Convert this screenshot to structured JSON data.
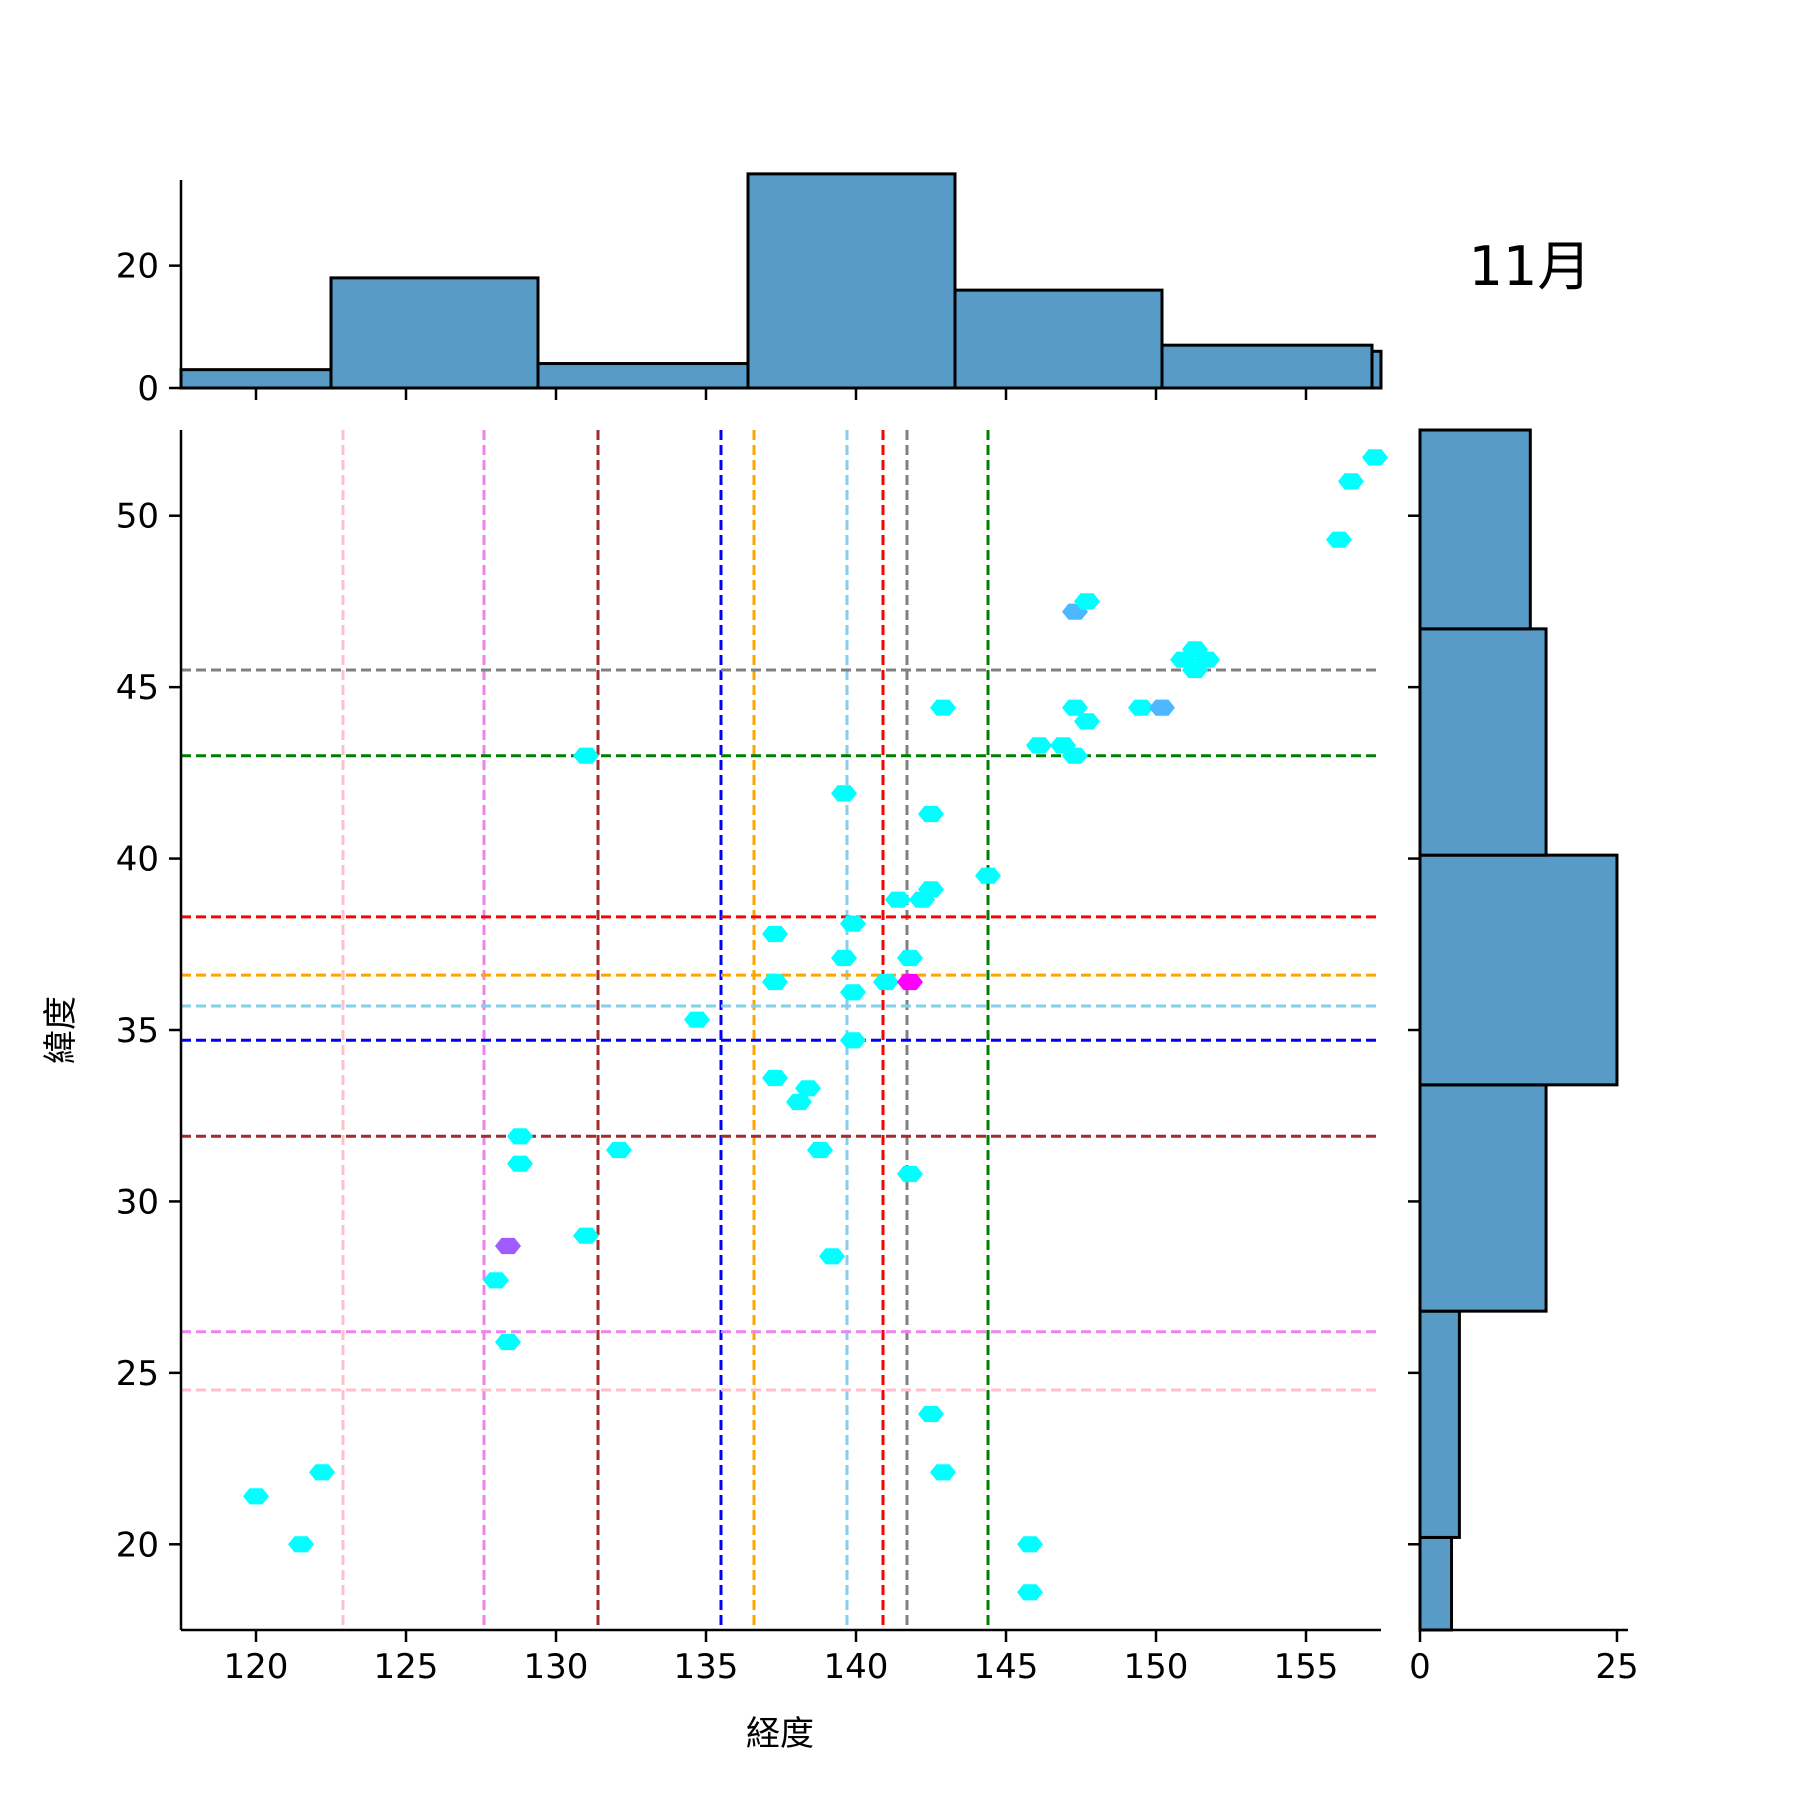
{
  "chart_data": {
    "type": "hexbin",
    "title": "11月",
    "xlabel": "経度",
    "ylabel": "緯度",
    "xlim": [
      117.5,
      157.5
    ],
    "ylim": [
      17.5,
      52.5
    ],
    "xticks": [
      120,
      125,
      130,
      135,
      140,
      145,
      150,
      155
    ],
    "yticks": [
      20,
      25,
      30,
      35,
      40,
      45,
      50
    ],
    "grid": false,
    "hex_colors": {
      "low": "#00ffff",
      "mid": "#4db8ff",
      "high": "#a05cff",
      "peak": "#ff00ff"
    },
    "points": [
      {
        "x": 120.0,
        "y": 21.4,
        "level": "low"
      },
      {
        "x": 121.5,
        "y": 20.0,
        "level": "low"
      },
      {
        "x": 122.2,
        "y": 22.1,
        "level": "low"
      },
      {
        "x": 128.0,
        "y": 27.7,
        "level": "low"
      },
      {
        "x": 128.4,
        "y": 28.7,
        "level": "high"
      },
      {
        "x": 128.4,
        "y": 25.9,
        "level": "low"
      },
      {
        "x": 128.8,
        "y": 31.9,
        "level": "low"
      },
      {
        "x": 128.8,
        "y": 31.1,
        "level": "low"
      },
      {
        "x": 131.0,
        "y": 43.0,
        "level": "low"
      },
      {
        "x": 131.0,
        "y": 29.0,
        "level": "low"
      },
      {
        "x": 132.1,
        "y": 31.5,
        "level": "low"
      },
      {
        "x": 134.7,
        "y": 35.3,
        "level": "low"
      },
      {
        "x": 137.3,
        "y": 37.8,
        "level": "low"
      },
      {
        "x": 137.3,
        "y": 36.4,
        "level": "low"
      },
      {
        "x": 137.3,
        "y": 33.6,
        "level": "low"
      },
      {
        "x": 138.1,
        "y": 32.9,
        "level": "low"
      },
      {
        "x": 138.4,
        "y": 33.3,
        "level": "low"
      },
      {
        "x": 138.8,
        "y": 31.5,
        "level": "low"
      },
      {
        "x": 139.2,
        "y": 28.4,
        "level": "low"
      },
      {
        "x": 139.6,
        "y": 41.9,
        "level": "low"
      },
      {
        "x": 139.6,
        "y": 37.1,
        "level": "low"
      },
      {
        "x": 139.9,
        "y": 38.1,
        "level": "low"
      },
      {
        "x": 139.9,
        "y": 36.1,
        "level": "low"
      },
      {
        "x": 139.9,
        "y": 34.7,
        "level": "low"
      },
      {
        "x": 141.0,
        "y": 36.4,
        "level": "low"
      },
      {
        "x": 141.4,
        "y": 38.8,
        "level": "low"
      },
      {
        "x": 141.8,
        "y": 37.1,
        "level": "low"
      },
      {
        "x": 141.8,
        "y": 36.4,
        "level": "peak"
      },
      {
        "x": 141.8,
        "y": 30.8,
        "level": "low"
      },
      {
        "x": 142.2,
        "y": 38.8,
        "level": "low"
      },
      {
        "x": 142.5,
        "y": 41.3,
        "level": "low"
      },
      {
        "x": 142.5,
        "y": 39.1,
        "level": "low"
      },
      {
        "x": 142.5,
        "y": 23.8,
        "level": "low"
      },
      {
        "x": 142.9,
        "y": 44.4,
        "level": "low"
      },
      {
        "x": 142.9,
        "y": 22.1,
        "level": "low"
      },
      {
        "x": 144.4,
        "y": 39.5,
        "level": "low"
      },
      {
        "x": 145.8,
        "y": 20.0,
        "level": "low"
      },
      {
        "x": 145.8,
        "y": 18.6,
        "level": "low"
      },
      {
        "x": 146.1,
        "y": 43.3,
        "level": "low"
      },
      {
        "x": 146.9,
        "y": 43.3,
        "level": "low"
      },
      {
        "x": 147.3,
        "y": 47.2,
        "level": "mid"
      },
      {
        "x": 147.3,
        "y": 44.4,
        "level": "low"
      },
      {
        "x": 147.3,
        "y": 43.0,
        "level": "low"
      },
      {
        "x": 147.7,
        "y": 47.5,
        "level": "low"
      },
      {
        "x": 147.7,
        "y": 44.0,
        "level": "low"
      },
      {
        "x": 149.5,
        "y": 44.4,
        "level": "low"
      },
      {
        "x": 150.2,
        "y": 44.4,
        "level": "mid"
      },
      {
        "x": 150.9,
        "y": 45.8,
        "level": "low"
      },
      {
        "x": 151.3,
        "y": 46.1,
        "level": "low"
      },
      {
        "x": 151.3,
        "y": 45.5,
        "level": "low"
      },
      {
        "x": 151.7,
        "y": 45.8,
        "level": "low"
      },
      {
        "x": 156.1,
        "y": 49.3,
        "level": "low"
      },
      {
        "x": 156.5,
        "y": 51.0,
        "level": "low"
      },
      {
        "x": 157.3,
        "y": 51.7,
        "level": "low"
      }
    ],
    "vlines": [
      {
        "x": 122.9,
        "color": "#ffc0cb"
      },
      {
        "x": 127.6,
        "color": "#ee82ee"
      },
      {
        "x": 131.4,
        "color": "#a52a2a"
      },
      {
        "x": 135.5,
        "color": "#0000ff"
      },
      {
        "x": 136.6,
        "color": "#ffa500"
      },
      {
        "x": 139.7,
        "color": "#87ceeb"
      },
      {
        "x": 140.9,
        "color": "#ff0000"
      },
      {
        "x": 141.7,
        "color": "#808080"
      },
      {
        "x": 144.4,
        "color": "#008000"
      }
    ],
    "hlines": [
      {
        "y": 24.5,
        "color": "#ffc0cb"
      },
      {
        "y": 26.2,
        "color": "#ee82ee"
      },
      {
        "y": 31.9,
        "color": "#a52a2a"
      },
      {
        "y": 34.7,
        "color": "#0000ff"
      },
      {
        "y": 36.6,
        "color": "#ffa500"
      },
      {
        "y": 35.7,
        "color": "#87ceeb"
      },
      {
        "y": 38.3,
        "color": "#ff0000"
      },
      {
        "y": 45.5,
        "color": "#808080"
      },
      {
        "y": 43.0,
        "color": "#008000"
      }
    ],
    "top_hist": {
      "yticks": [
        0,
        20
      ],
      "ylim": [
        0,
        34
      ],
      "bins": [
        {
          "x0": 117.5,
          "x1": 122.5,
          "count": 3
        },
        {
          "x0": 122.5,
          "x1": 129.4,
          "count": 18
        },
        {
          "x0": 129.4,
          "x1": 136.4,
          "count": 4
        },
        {
          "x0": 136.4,
          "x1": 143.3,
          "count": 35
        },
        {
          "x0": 143.3,
          "x1": 150.2,
          "count": 16
        },
        {
          "x0": 150.2,
          "x1": 157.2,
          "count": 7
        },
        {
          "x0": 157.2,
          "x1": 157.5,
          "count": 6
        }
      ]
    },
    "right_hist": {
      "xticks": [
        0,
        25
      ],
      "xlim": [
        0,
        26.4
      ],
      "bins": [
        {
          "y0": 17.5,
          "y1": 20.2,
          "count": 4
        },
        {
          "y0": 20.2,
          "y1": 26.8,
          "count": 5
        },
        {
          "y0": 26.8,
          "y1": 33.4,
          "count": 16
        },
        {
          "y0": 33.4,
          "y1": 40.1,
          "count": 25
        },
        {
          "y0": 40.1,
          "y1": 46.7,
          "count": 16
        },
        {
          "y0": 46.7,
          "y1": 52.5,
          "count": 14
        }
      ]
    }
  }
}
